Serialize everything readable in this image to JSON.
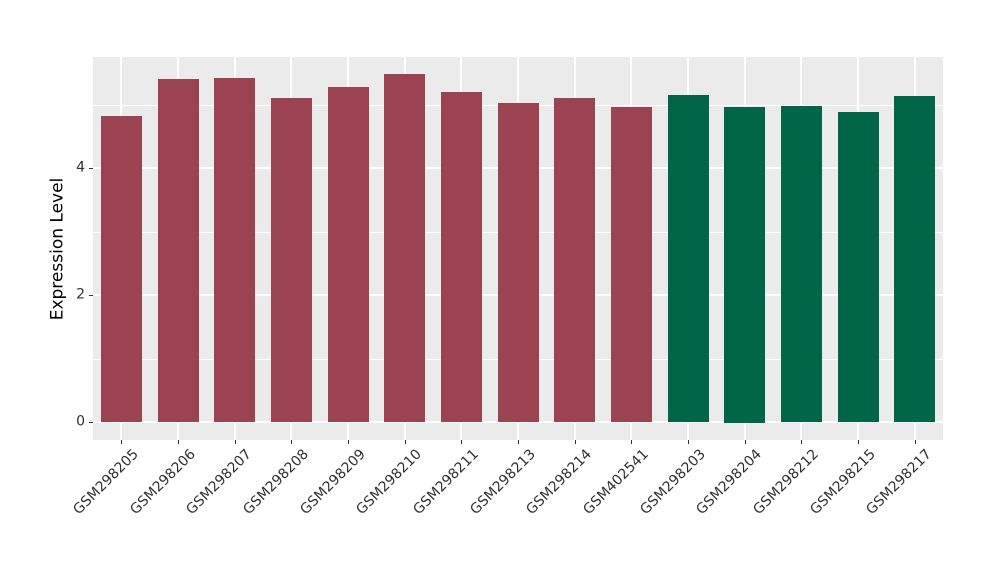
{
  "chart_data": {
    "type": "bar",
    "title": "",
    "xlabel": "",
    "ylabel": "Expression Level",
    "categories": [
      "GSM298205",
      "GSM298206",
      "GSM298207",
      "GSM298208",
      "GSM298209",
      "GSM298210",
      "GSM298211",
      "GSM298213",
      "GSM298214",
      "GSM402541",
      "GSM298203",
      "GSM298204",
      "GSM298212",
      "GSM298215",
      "GSM298217"
    ],
    "values": [
      4.82,
      5.4,
      5.42,
      5.1,
      5.27,
      5.48,
      5.2,
      5.02,
      5.11,
      4.96,
      5.15,
      4.97,
      4.98,
      4.89,
      5.13
    ],
    "bar_colors": [
      "#9B4350",
      "#9B4350",
      "#9B4350",
      "#9B4350",
      "#9B4350",
      "#9B4350",
      "#9B4350",
      "#9B4350",
      "#9B4350",
      "#9B4350",
      "#016647",
      "#016647",
      "#016647",
      "#016647",
      "#016647"
    ],
    "group_colors": {
      "group_a": "#9B4350",
      "group_b": "#016647"
    },
    "group_assignment": [
      "group_a",
      "group_a",
      "group_a",
      "group_a",
      "group_a",
      "group_a",
      "group_a",
      "group_a",
      "group_a",
      "group_a",
      "group_b",
      "group_b",
      "group_b",
      "group_b",
      "group_b"
    ],
    "yticks": [
      0,
      2,
      4
    ],
    "y_minor_ticks": [
      1,
      3,
      5
    ],
    "ylim": [
      -0.283,
      5.75
    ],
    "x_tick_rotation_deg": 45,
    "legend": "none",
    "grid": "on",
    "panel_background": "#EBEBEB",
    "gridline_color": "#FFFFFF",
    "tick_color": "#333333",
    "axis_text_color": "#303030"
  }
}
